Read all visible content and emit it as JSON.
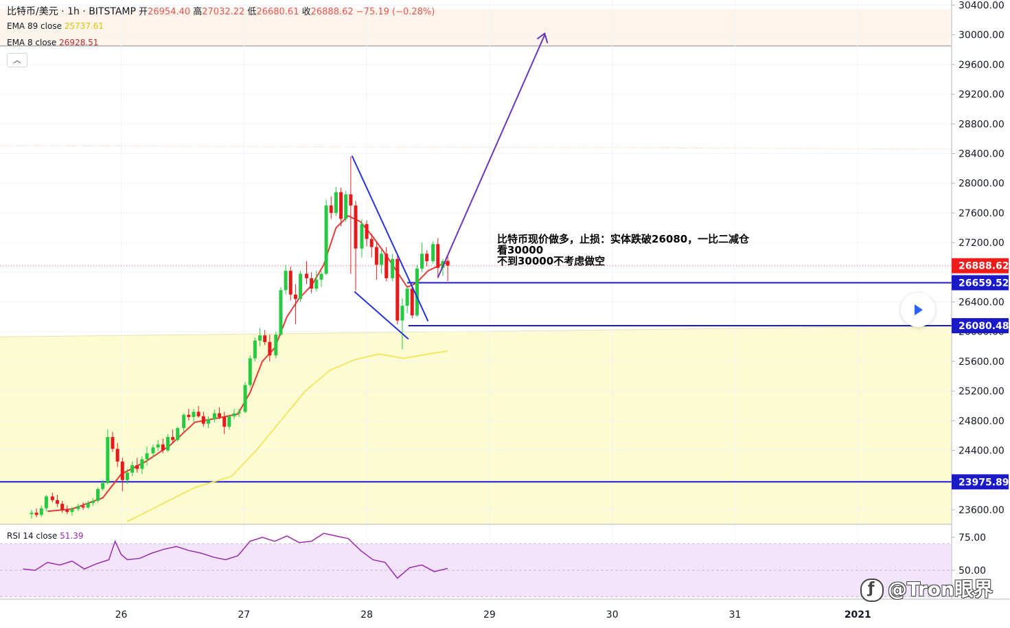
{
  "header": {
    "symbol": "比特币/美元 · 1h · BITSTAMP",
    "ohlc": [
      {
        "label": "开",
        "value": "26954.40"
      },
      {
        "label": "高",
        "value": "27032.22"
      },
      {
        "label": "低",
        "value": "26680.61"
      },
      {
        "label": "收",
        "value": "26888.62"
      }
    ],
    "change": "−75.19 (−0.28%)"
  },
  "indicators": {
    "ema89": {
      "label": "EMA 89 close",
      "value": "25737.61",
      "color": "#f5e663"
    },
    "ema8": {
      "label": "EMA 8 close",
      "value": "26928.51",
      "color": "#e53935"
    },
    "rsi": {
      "label": "RSI 14 close",
      "value": "51.39",
      "color": "#9c27b0"
    }
  },
  "annotation_lines": [
    "比特币现价做多，止损：实体跌破26080，一比二减仓",
    "看30000",
    "不到30000不考虑做空"
  ],
  "watermark": "@Tron眼界",
  "colors": {
    "up": "#26c940",
    "down": "#e51b1b",
    "level_line": "#1a1ac9",
    "wedge": "#2233dd",
    "arrow": "#6a35b8",
    "yellow_zone": "#fdfbd2",
    "pink_zone": "#fdf5ec",
    "rsi_band": "#f1e4fb"
  },
  "chart_data": [
    {
      "type": "candlestick",
      "title": "比特币/美元 · 1h · BITSTAMP",
      "x_axis": {
        "tick_labels": [
          "26",
          "27",
          "28",
          "29",
          "30",
          "31",
          "2021"
        ],
        "unit": "day (Dec 2020)"
      },
      "y_axis": {
        "tick_labels": [
          "30400.00",
          "30000.00",
          "29600.00",
          "29200.00",
          "28800.00",
          "28400.00",
          "28000.00",
          "27600.00",
          "27200.00",
          "26400.00",
          "26000.00",
          "25600.00",
          "25200.00",
          "24800.00",
          "24400.00",
          "23600.00"
        ],
        "range": [
          23450,
          30500
        ]
      },
      "price_labels": [
        {
          "value": 26888.62,
          "text": "26888.62",
          "kind": "last",
          "color": "#ef1c1c"
        },
        {
          "value": 26659.52,
          "text": "26659.52",
          "kind": "level",
          "color": "#1a1ac9"
        },
        {
          "value": 26080.48,
          "text": "26080.48",
          "kind": "level",
          "color": "#1a1ac9"
        },
        {
          "value": 23975.89,
          "text": "23975.89",
          "kind": "level",
          "color": "#1a1ac9"
        }
      ],
      "candles_close_x_days": [
        25.1,
        28.65
      ],
      "candles": [
        {
          "x": 25.27,
          "o": 23540,
          "h": 23600,
          "l": 23480,
          "c": 23560
        },
        {
          "x": 25.31,
          "o": 23560,
          "h": 23620,
          "l": 23500,
          "c": 23530
        },
        {
          "x": 25.35,
          "o": 23530,
          "h": 23660,
          "l": 23500,
          "c": 23620
        },
        {
          "x": 25.39,
          "o": 23620,
          "h": 23800,
          "l": 23580,
          "c": 23780
        },
        {
          "x": 25.44,
          "o": 23780,
          "h": 23830,
          "l": 23700,
          "c": 23730
        },
        {
          "x": 25.48,
          "o": 23730,
          "h": 23800,
          "l": 23640,
          "c": 23680
        },
        {
          "x": 25.52,
          "o": 23680,
          "h": 23720,
          "l": 23560,
          "c": 23600
        },
        {
          "x": 25.56,
          "o": 23600,
          "h": 23660,
          "l": 23540,
          "c": 23570
        },
        {
          "x": 25.6,
          "o": 23570,
          "h": 23640,
          "l": 23520,
          "c": 23610
        },
        {
          "x": 25.65,
          "o": 23610,
          "h": 23680,
          "l": 23580,
          "c": 23650
        },
        {
          "x": 25.69,
          "o": 23650,
          "h": 23700,
          "l": 23600,
          "c": 23630
        },
        {
          "x": 25.73,
          "o": 23630,
          "h": 23720,
          "l": 23610,
          "c": 23690
        },
        {
          "x": 25.77,
          "o": 23690,
          "h": 23760,
          "l": 23650,
          "c": 23720
        },
        {
          "x": 25.81,
          "o": 23720,
          "h": 23900,
          "l": 23700,
          "c": 23880
        },
        {
          "x": 25.85,
          "o": 23880,
          "h": 24000,
          "l": 23860,
          "c": 23960
        },
        {
          "x": 25.89,
          "o": 23960,
          "h": 24680,
          "l": 23940,
          "c": 24580
        },
        {
          "x": 25.93,
          "o": 24580,
          "h": 24650,
          "l": 24380,
          "c": 24420
        },
        {
          "x": 25.97,
          "o": 24420,
          "h": 24500,
          "l": 24180,
          "c": 24250
        },
        {
          "x": 26.01,
          "o": 24250,
          "h": 24300,
          "l": 23850,
          "c": 24000
        },
        {
          "x": 26.05,
          "o": 24000,
          "h": 24150,
          "l": 23950,
          "c": 24100
        },
        {
          "x": 26.09,
          "o": 24100,
          "h": 24250,
          "l": 24050,
          "c": 24200
        },
        {
          "x": 26.13,
          "o": 24200,
          "h": 24300,
          "l": 24100,
          "c": 24150
        },
        {
          "x": 26.17,
          "o": 24150,
          "h": 24320,
          "l": 24080,
          "c": 24280
        },
        {
          "x": 26.21,
          "o": 24280,
          "h": 24450,
          "l": 24200,
          "c": 24360
        },
        {
          "x": 26.26,
          "o": 24360,
          "h": 24480,
          "l": 24300,
          "c": 24440
        },
        {
          "x": 26.3,
          "o": 24440,
          "h": 24540,
          "l": 24390,
          "c": 24480
        },
        {
          "x": 26.34,
          "o": 24480,
          "h": 24560,
          "l": 24360,
          "c": 24400
        },
        {
          "x": 26.38,
          "o": 24400,
          "h": 24620,
          "l": 24380,
          "c": 24580
        },
        {
          "x": 26.42,
          "o": 24580,
          "h": 24680,
          "l": 24500,
          "c": 24540
        },
        {
          "x": 26.46,
          "o": 24540,
          "h": 24720,
          "l": 24520,
          "c": 24700
        },
        {
          "x": 26.51,
          "o": 24700,
          "h": 24900,
          "l": 24650,
          "c": 24880
        },
        {
          "x": 26.55,
          "o": 24880,
          "h": 24960,
          "l": 24800,
          "c": 24850
        },
        {
          "x": 26.59,
          "o": 24850,
          "h": 24960,
          "l": 24780,
          "c": 24920
        },
        {
          "x": 26.63,
          "o": 24920,
          "h": 25000,
          "l": 24840,
          "c": 24860
        },
        {
          "x": 26.67,
          "o": 24860,
          "h": 24920,
          "l": 24720,
          "c": 24760
        },
        {
          "x": 26.71,
          "o": 24760,
          "h": 24860,
          "l": 24700,
          "c": 24820
        },
        {
          "x": 26.76,
          "o": 24820,
          "h": 24950,
          "l": 24780,
          "c": 24900
        },
        {
          "x": 26.8,
          "o": 24900,
          "h": 24980,
          "l": 24820,
          "c": 24850
        },
        {
          "x": 26.84,
          "o": 24850,
          "h": 24920,
          "l": 24620,
          "c": 24720
        },
        {
          "x": 26.88,
          "o": 24720,
          "h": 24880,
          "l": 24680,
          "c": 24860
        },
        {
          "x": 26.92,
          "o": 24860,
          "h": 24960,
          "l": 24820,
          "c": 24900
        },
        {
          "x": 26.96,
          "o": 24900,
          "h": 24960,
          "l": 24850,
          "c": 24920
        },
        {
          "x": 27.01,
          "o": 24920,
          "h": 25320,
          "l": 24900,
          "c": 25280
        },
        {
          "x": 27.05,
          "o": 25280,
          "h": 25680,
          "l": 25250,
          "c": 25640
        },
        {
          "x": 27.09,
          "o": 25640,
          "h": 25920,
          "l": 25600,
          "c": 25880
        },
        {
          "x": 27.13,
          "o": 25880,
          "h": 26050,
          "l": 25800,
          "c": 25950
        },
        {
          "x": 27.17,
          "o": 25950,
          "h": 26020,
          "l": 25820,
          "c": 25860
        },
        {
          "x": 27.21,
          "o": 25860,
          "h": 25960,
          "l": 25600,
          "c": 25680
        },
        {
          "x": 27.26,
          "o": 25680,
          "h": 26000,
          "l": 25640,
          "c": 25960
        },
        {
          "x": 27.3,
          "o": 25960,
          "h": 26600,
          "l": 25940,
          "c": 26560
        },
        {
          "x": 27.34,
          "o": 26560,
          "h": 26900,
          "l": 26500,
          "c": 26820
        },
        {
          "x": 27.38,
          "o": 26820,
          "h": 26880,
          "l": 26420,
          "c": 26500
        },
        {
          "x": 27.42,
          "o": 26500,
          "h": 26640,
          "l": 26100,
          "c": 26440
        },
        {
          "x": 27.46,
          "o": 26440,
          "h": 26820,
          "l": 26400,
          "c": 26780
        },
        {
          "x": 27.51,
          "o": 26780,
          "h": 26950,
          "l": 26640,
          "c": 26720
        },
        {
          "x": 27.55,
          "o": 26720,
          "h": 26800,
          "l": 26520,
          "c": 26580
        },
        {
          "x": 27.59,
          "o": 26580,
          "h": 26820,
          "l": 26540,
          "c": 26700
        },
        {
          "x": 27.63,
          "o": 26700,
          "h": 26820,
          "l": 26600,
          "c": 26780
        },
        {
          "x": 27.67,
          "o": 26780,
          "h": 27780,
          "l": 26760,
          "c": 27700
        },
        {
          "x": 27.71,
          "o": 27700,
          "h": 27820,
          "l": 27520,
          "c": 27600
        },
        {
          "x": 27.75,
          "o": 27600,
          "h": 27950,
          "l": 27560,
          "c": 27880
        },
        {
          "x": 27.79,
          "o": 27880,
          "h": 27940,
          "l": 27420,
          "c": 27520
        },
        {
          "x": 27.83,
          "o": 27520,
          "h": 27900,
          "l": 27480,
          "c": 27850
        },
        {
          "x": 27.87,
          "o": 27850,
          "h": 28360,
          "l": 26780,
          "c": 27700
        },
        {
          "x": 27.91,
          "o": 27700,
          "h": 27760,
          "l": 26550,
          "c": 27120
        },
        {
          "x": 27.96,
          "o": 27120,
          "h": 27520,
          "l": 27000,
          "c": 27450
        },
        {
          "x": 28.0,
          "o": 27450,
          "h": 27500,
          "l": 27150,
          "c": 27250
        },
        {
          "x": 28.04,
          "o": 27250,
          "h": 27320,
          "l": 27000,
          "c": 27140
        },
        {
          "x": 28.08,
          "o": 27140,
          "h": 27200,
          "l": 26700,
          "c": 26900
        },
        {
          "x": 28.12,
          "o": 26900,
          "h": 27100,
          "l": 26780,
          "c": 27050
        },
        {
          "x": 28.16,
          "o": 27050,
          "h": 27140,
          "l": 26680,
          "c": 26720
        },
        {
          "x": 28.21,
          "o": 26720,
          "h": 27050,
          "l": 26680,
          "c": 26980
        },
        {
          "x": 28.25,
          "o": 26980,
          "h": 27050,
          "l": 26100,
          "c": 26150
        },
        {
          "x": 28.29,
          "o": 26150,
          "h": 26450,
          "l": 25760,
          "c": 26350
        },
        {
          "x": 28.33,
          "o": 26350,
          "h": 26600,
          "l": 26250,
          "c": 26580
        },
        {
          "x": 28.37,
          "o": 26580,
          "h": 26620,
          "l": 26180,
          "c": 26220
        },
        {
          "x": 28.41,
          "o": 26220,
          "h": 26900,
          "l": 26200,
          "c": 26850
        },
        {
          "x": 28.45,
          "o": 26850,
          "h": 27200,
          "l": 26800,
          "c": 27050
        },
        {
          "x": 28.49,
          "o": 27050,
          "h": 27100,
          "l": 26880,
          "c": 26950
        },
        {
          "x": 28.54,
          "o": 26950,
          "h": 27220,
          "l": 26920,
          "c": 27180
        },
        {
          "x": 28.58,
          "o": 27180,
          "h": 27260,
          "l": 26720,
          "c": 26860
        },
        {
          "x": 28.62,
          "o": 26860,
          "h": 26980,
          "l": 26750,
          "c": 26950
        },
        {
          "x": 28.66,
          "o": 26954.4,
          "h": 27032.22,
          "l": 26680.61,
          "c": 26888.62
        }
      ],
      "ema8": [
        [
          25.4,
          23580
        ],
        [
          25.6,
          23610
        ],
        [
          25.85,
          23760
        ],
        [
          26.0,
          24080
        ],
        [
          26.2,
          24250
        ],
        [
          26.4,
          24470
        ],
        [
          26.6,
          24780
        ],
        [
          26.8,
          24840
        ],
        [
          26.95,
          24890
        ],
        [
          27.05,
          25180
        ],
        [
          27.15,
          25600
        ],
        [
          27.25,
          25780
        ],
        [
          27.35,
          26200
        ],
        [
          27.45,
          26450
        ],
        [
          27.55,
          26620
        ],
        [
          27.65,
          26900
        ],
        [
          27.75,
          27400
        ],
        [
          27.85,
          27560
        ],
        [
          27.95,
          27480
        ],
        [
          28.05,
          27280
        ],
        [
          28.15,
          27050
        ],
        [
          28.25,
          26800
        ],
        [
          28.33,
          26600
        ],
        [
          28.4,
          26650
        ],
        [
          28.5,
          26820
        ],
        [
          28.6,
          26900
        ],
        [
          28.66,
          26928.51
        ]
      ],
      "ema89": [
        [
          26.05,
          23440
        ],
        [
          26.3,
          23650
        ],
        [
          26.6,
          23900
        ],
        [
          26.9,
          24050
        ],
        [
          27.1,
          24400
        ],
        [
          27.3,
          24800
        ],
        [
          27.5,
          25200
        ],
        [
          27.7,
          25480
        ],
        [
          27.9,
          25620
        ],
        [
          28.1,
          25700
        ],
        [
          28.3,
          25640
        ],
        [
          28.5,
          25700
        ],
        [
          28.66,
          25737.61
        ]
      ],
      "levels": [
        26659.52,
        26080.48,
        23975.89
      ],
      "drawings": {
        "wedge_upper": [
          [
            27.88,
            28370
          ],
          [
            28.5,
            26140
          ]
        ],
        "wedge_lower": [
          [
            27.9,
            26540
          ],
          [
            28.34,
            25900
          ]
        ],
        "target_arrow": [
          [
            28.58,
            26730
          ],
          [
            29.45,
            30000
          ]
        ],
        "level_26659_start_x": 28.33,
        "level_26080_start_x": 28.34,
        "zone_lower_top": 26040,
        "zone_upper_range": [
          29850,
          30350
        ],
        "dotted_line": 28480
      }
    },
    {
      "type": "line",
      "title": "RSI 14 close",
      "y_axis": {
        "tick_labels": [
          "75.00",
          "50.00"
        ],
        "range": [
          30,
          85
        ],
        "band": [
          30,
          70
        ]
      },
      "values": [
        [
          25.2,
          51
        ],
        [
          25.3,
          50
        ],
        [
          25.4,
          56
        ],
        [
          25.5,
          54
        ],
        [
          25.6,
          57
        ],
        [
          25.7,
          51
        ],
        [
          25.8,
          55
        ],
        [
          25.9,
          58
        ],
        [
          25.95,
          72
        ],
        [
          26.0,
          62
        ],
        [
          26.05,
          58
        ],
        [
          26.15,
          59
        ],
        [
          26.25,
          63
        ],
        [
          26.35,
          66
        ],
        [
          26.45,
          68
        ],
        [
          26.55,
          65
        ],
        [
          26.65,
          63
        ],
        [
          26.75,
          60
        ],
        [
          26.85,
          58
        ],
        [
          26.95,
          61
        ],
        [
          27.05,
          72
        ],
        [
          27.15,
          75
        ],
        [
          27.25,
          72
        ],
        [
          27.35,
          76
        ],
        [
          27.45,
          71
        ],
        [
          27.55,
          72
        ],
        [
          27.65,
          78
        ],
        [
          27.75,
          76
        ],
        [
          27.85,
          74
        ],
        [
          27.95,
          65
        ],
        [
          28.05,
          58
        ],
        [
          28.15,
          56
        ],
        [
          28.25,
          44
        ],
        [
          28.35,
          52
        ],
        [
          28.45,
          54
        ],
        [
          28.55,
          49
        ],
        [
          28.66,
          51.39
        ]
      ]
    }
  ]
}
